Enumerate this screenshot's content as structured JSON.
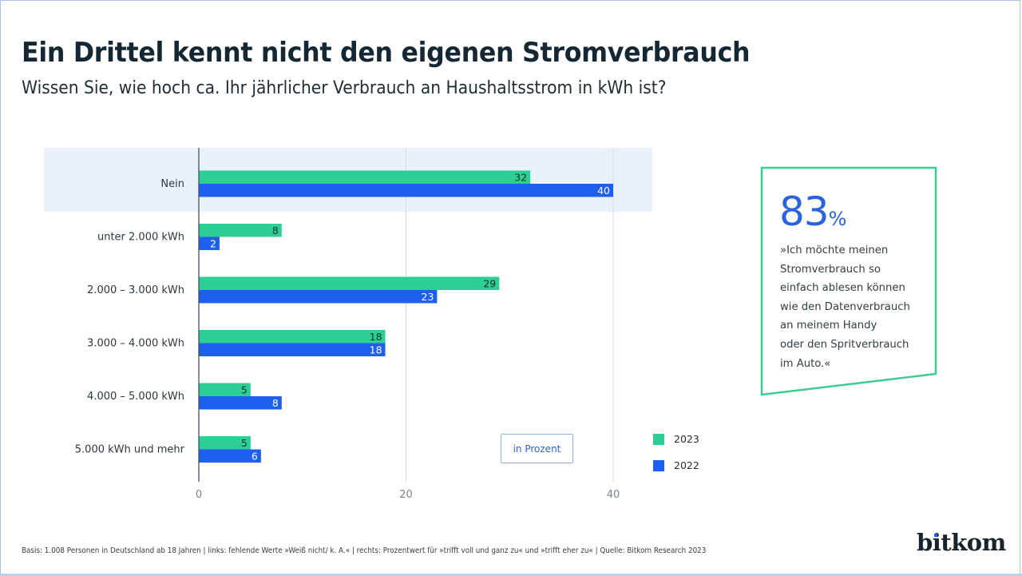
{
  "header": {
    "title": "Ein Drittel kennt nicht den eigenen Stromverbrauch",
    "subtitle": "Wissen Sie, wie hoch ca. Ihr jährlicher Verbrauch an Haushaltsstrom in kWh ist?"
  },
  "colors": {
    "series_2023": "#2ecf95",
    "series_2022": "#1f5ff0",
    "highlight_band": "#e8f2fd",
    "callout_border": "#3ecb94",
    "accent_blue": "#2a62e0"
  },
  "chart_data": {
    "type": "bar",
    "orientation": "horizontal",
    "title": "Ein Drittel kennt nicht den eigenen Stromverbrauch",
    "subtitle": "Wissen Sie, wie hoch ca. Ihr jährlicher Verbrauch an Haushaltsstrom in kWh ist?",
    "categories": [
      "Nein",
      "unter 2.000 kWh",
      "2.000 – 3.000 kWh",
      "3.000 – 4.000 kWh",
      "4.000 – 5.000 kWh",
      "5.000 kWh und mehr"
    ],
    "series": [
      {
        "name": "2023",
        "values": [
          32,
          8,
          29,
          18,
          5,
          5
        ]
      },
      {
        "name": "2022",
        "values": [
          40,
          2,
          23,
          18,
          8,
          6
        ]
      }
    ],
    "highlighted_category": "Nein",
    "xlabel": "",
    "ylabel": "",
    "unit_label": "in Prozent",
    "xlim": [
      0,
      40
    ],
    "xticks": [
      0,
      20,
      40
    ],
    "grid": true,
    "legend_position": "bottom-right"
  },
  "callout": {
    "number": "83",
    "unit": "%",
    "lines": [
      "»Ich möchte meinen",
      "Stromverbrauch so",
      "einfach ablesen können",
      "wie den Datenverbrauch",
      "an meinem Handy",
      "oder den Spritverbrauch",
      "im Auto.«"
    ]
  },
  "footer": {
    "note": "Basis: 1.008 Personen in Deutschland ab 18 Jahren | links: fehlende Werte »Weiß nicht/ k. A.« | rechts: Prozentwert für »trifft voll und ganz zu« und »trifft eher zu« | Quelle: Bitkom Research 2023",
    "logo": "bitkom"
  }
}
